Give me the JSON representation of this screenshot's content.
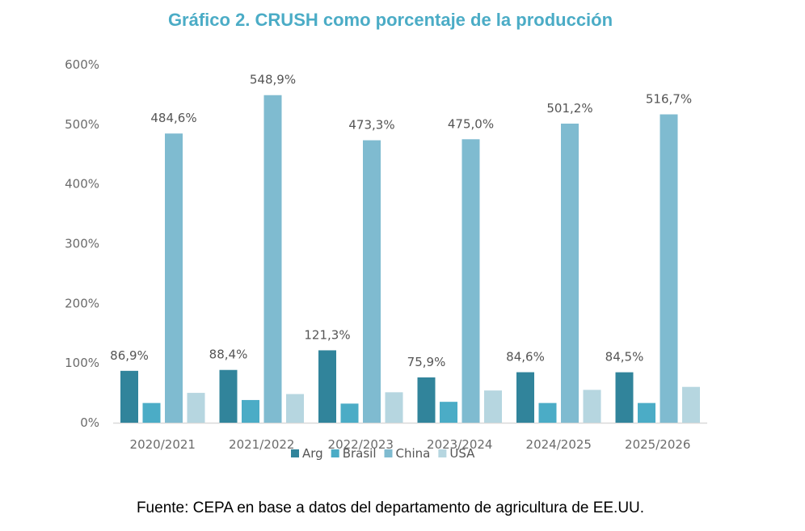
{
  "colors": {
    "title": "#4bacc6",
    "axis": "#d9d9d9",
    "series": [
      "#31849b",
      "#4bacc6",
      "#7fbbd0",
      "#b6d6e0"
    ]
  },
  "source_text": "Fuente: CEPA en base a datos del departamento de agricultura de EE.UU.",
  "chart_data": {
    "type": "bar",
    "title": "Gráfico 2. CRUSH como porcentaje de la producción",
    "xlabel": "",
    "ylabel": "",
    "ylim": [
      0,
      600
    ],
    "yticks": [
      0,
      100,
      200,
      300,
      400,
      500,
      600
    ],
    "ytick_labels": [
      "0%",
      "100%",
      "200%",
      "300%",
      "400%",
      "500%",
      "600%"
    ],
    "grid": false,
    "legend_position": "bottom",
    "categories": [
      "2020/2021",
      "2021/2022",
      "2022/2023",
      "2023/2024",
      "2024/2025",
      "2025/2026"
    ],
    "series": [
      {
        "name": "Arg",
        "values": [
          86.9,
          88.4,
          121.3,
          75.9,
          84.6,
          84.5
        ],
        "labels": [
          "86,9%",
          "88,4%",
          "121,3%",
          "75,9%",
          "84,6%",
          "84,5%"
        ]
      },
      {
        "name": "Brasil",
        "values": [
          33,
          38,
          32,
          35,
          33,
          33
        ]
      },
      {
        "name": "China",
        "values": [
          484.6,
          548.9,
          473.3,
          475.0,
          501.2,
          516.7
        ],
        "labels": [
          "484,6%",
          "548,9%",
          "473,3%",
          "475,0%",
          "501,2%",
          "516,7%"
        ]
      },
      {
        "name": "USA",
        "values": [
          50,
          48,
          51,
          54,
          55,
          60
        ]
      }
    ]
  }
}
